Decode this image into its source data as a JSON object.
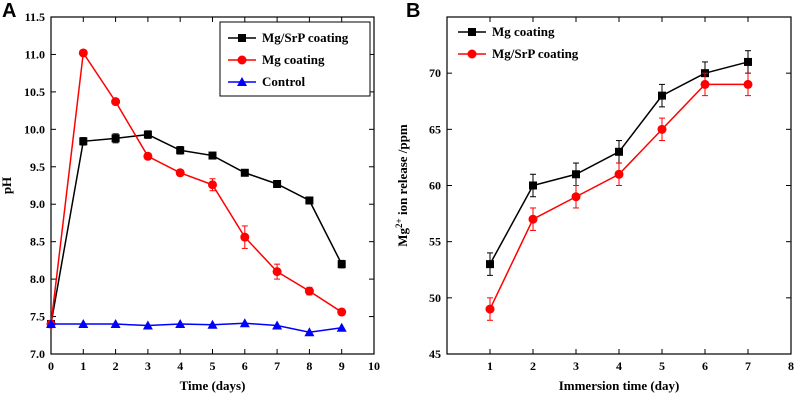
{
  "panels": {
    "a": "A",
    "b": "B"
  },
  "chart_data": [
    {
      "type": "line",
      "title": "",
      "xlabel": "Time (days)",
      "ylabel": "pH",
      "xlim": [
        0,
        10
      ],
      "ylim": [
        7.0,
        11.5
      ],
      "xticks": [
        0,
        1,
        2,
        3,
        4,
        5,
        6,
        7,
        8,
        9,
        10
      ],
      "yticks": [
        7.0,
        7.5,
        8.0,
        8.5,
        9.0,
        9.5,
        10.0,
        10.5,
        11.0,
        11.5
      ],
      "ytick_decimals": 1,
      "legend_position": "top-right",
      "series": [
        {
          "name": "Mg/SrP coating",
          "color": "#000000",
          "marker": "square",
          "x": [
            0,
            1,
            2,
            3,
            4,
            5,
            6,
            7,
            8,
            9
          ],
          "y": [
            7.4,
            9.84,
            9.88,
            9.93,
            9.72,
            9.65,
            9.42,
            9.27,
            9.05,
            8.2
          ],
          "err": [
            0,
            0.05,
            0.06,
            0.05,
            0.05,
            0.04,
            0.04,
            0.04,
            0.04,
            0.05
          ]
        },
        {
          "name": "Mg coating",
          "color": "#ff0000",
          "marker": "circle",
          "x": [
            0,
            1,
            2,
            3,
            4,
            5,
            6,
            7,
            8,
            9
          ],
          "y": [
            7.4,
            11.02,
            10.37,
            9.64,
            9.42,
            9.26,
            8.56,
            8.1,
            7.84,
            7.56
          ],
          "err": [
            0,
            0.03,
            0.04,
            0.04,
            0.04,
            0.08,
            0.15,
            0.1,
            0.05,
            0.04
          ]
        },
        {
          "name": "Control",
          "color": "#0000ff",
          "marker": "triangle",
          "x": [
            0,
            1,
            2,
            3,
            4,
            5,
            6,
            7,
            8,
            9
          ],
          "y": [
            7.4,
            7.4,
            7.4,
            7.38,
            7.4,
            7.39,
            7.41,
            7.38,
            7.29,
            7.35
          ],
          "err": [
            0,
            0,
            0,
            0,
            0,
            0,
            0,
            0,
            0,
            0
          ]
        }
      ]
    },
    {
      "type": "line",
      "title": "",
      "xlabel": "Immersion time (day)",
      "ylabel": "Mg2+ ion release /ppm",
      "ylabel_parts": {
        "base": "Mg",
        "sup": "2+",
        "rest": " ion release /ppm"
      },
      "xlim": [
        0,
        8
      ],
      "ylim": [
        45,
        75
      ],
      "xticks": [
        1,
        2,
        3,
        4,
        5,
        6,
        7,
        8
      ],
      "yticks": [
        45,
        50,
        55,
        60,
        65,
        70
      ],
      "ytick_decimals": 0,
      "legend_position": "top-left",
      "series": [
        {
          "name": "Mg coating",
          "color": "#000000",
          "marker": "square",
          "x": [
            1,
            2,
            3,
            4,
            5,
            6,
            7
          ],
          "y": [
            53,
            60,
            61,
            63,
            68,
            70,
            71
          ],
          "err": [
            1,
            1,
            1,
            1,
            1,
            1,
            1
          ]
        },
        {
          "name": "Mg/SrP coating",
          "color": "#ff0000",
          "marker": "circle",
          "x": [
            1,
            2,
            3,
            4,
            5,
            6,
            7
          ],
          "y": [
            49,
            57,
            59,
            61,
            65,
            69,
            69
          ],
          "err": [
            1,
            1,
            1,
            1,
            1,
            1,
            1
          ]
        }
      ]
    }
  ]
}
